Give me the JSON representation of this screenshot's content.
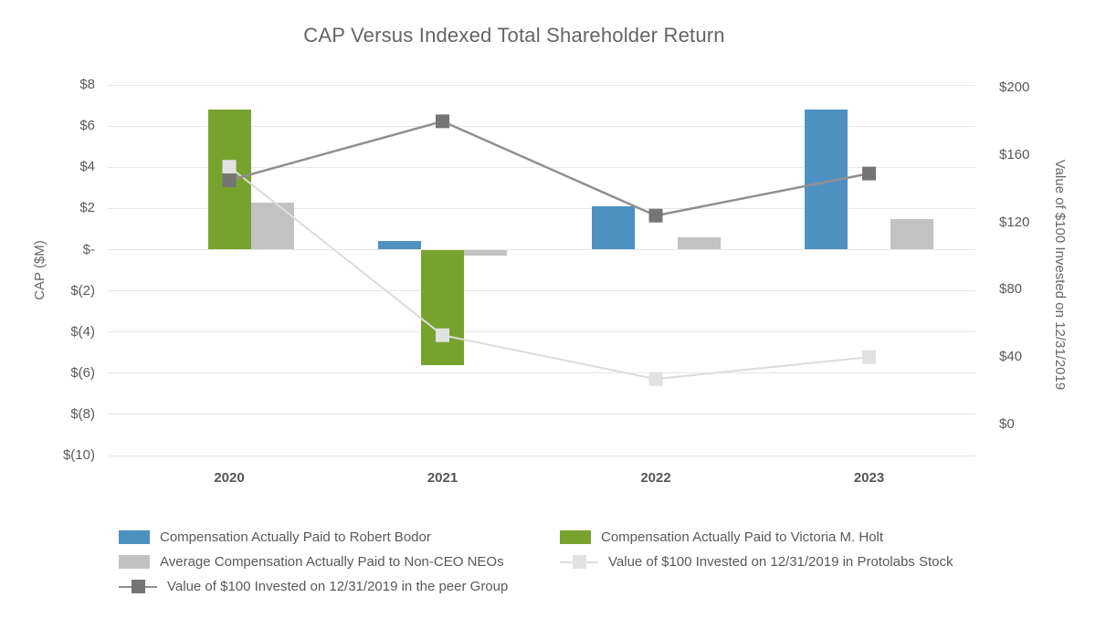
{
  "chart_data": {
    "type": "bar",
    "subtype": "grouped-bar-with-lines-dual-axis",
    "title": "CAP Versus Indexed Total Shareholder Return",
    "categories": [
      "2020",
      "2021",
      "2022",
      "2023"
    ],
    "left_axis": {
      "title": "CAP ($M)",
      "ticks": [
        8,
        6,
        4,
        2,
        0,
        -2,
        -4,
        -6,
        -8,
        -10
      ],
      "tick_labels": [
        "$8",
        "$6",
        "$4",
        "$2",
        "$-",
        "$(2)",
        "$(4)",
        "$(6)",
        "$(8)",
        "$(10)"
      ],
      "ylim": [
        -10,
        8
      ]
    },
    "right_axis": {
      "title": "Value of $100 Invested on 12/31/2019",
      "ticks": [
        200,
        160,
        120,
        80,
        40,
        0
      ],
      "tick_labels": [
        "$200",
        "$160",
        "$120",
        "$80",
        "$40",
        "$0"
      ],
      "ylim": [
        0,
        200
      ]
    },
    "grid": "horizontal-only",
    "series": [
      {
        "name": "Compensation Actually Paid to Robert Bodor",
        "type": "bar",
        "axis": "left",
        "slot": 0,
        "color": "#4d91c1",
        "values": [
          null,
          0.4,
          2.1,
          6.8
        ]
      },
      {
        "name": "Compensation Actually Paid to Victoria M. Holt",
        "type": "bar",
        "axis": "left",
        "slot": 1,
        "color": "#78a22e",
        "values": [
          6.8,
          -5.6,
          null,
          null
        ]
      },
      {
        "name": "Average Compensation Actually Paid to Non-CEO NEOs",
        "type": "bar",
        "axis": "left",
        "slot": 2,
        "color": "#c2c2c2",
        "values": [
          2.3,
          -0.3,
          0.6,
          1.5
        ]
      },
      {
        "name": "Value of $100 Invested on 12/31/2019 in Protolabs Stock",
        "type": "line",
        "axis": "right",
        "color": "#dcdcdc",
        "marker_color": "#e2e2e2",
        "marker": "square",
        "values": [
          153,
          53,
          27,
          40
        ]
      },
      {
        "name": "Value of $100 Invested on 12/31/2019 in the peer Group",
        "type": "line",
        "axis": "right",
        "color": "#8f8f8f",
        "marker_color": "#757575",
        "marker": "square",
        "values": [
          145,
          180,
          124,
          149
        ]
      }
    ],
    "legend": {
      "position": "bottom",
      "columns": [
        [
          {
            "swatch": "bar",
            "color": "#4d91c1",
            "label": "Compensation Actually Paid to Robert Bodor"
          },
          {
            "swatch": "bar",
            "color": "#c2c2c2",
            "label": "Average Compensation Actually Paid to Non-CEO NEOs"
          },
          {
            "swatch": "line",
            "line_color": "#8f8f8f",
            "marker_color": "#757575",
            "label": "Value of $100 Invested on 12/31/2019 in the peer Group"
          }
        ],
        [
          {
            "swatch": "bar",
            "color": "#78a22e",
            "label": "Compensation Actually Paid to Victoria M. Holt"
          },
          {
            "swatch": "line",
            "line_color": "#dcdcdc",
            "marker_color": "#e2e2e2",
            "label": "Value of $100 Invested on 12/31/2019 in Protolabs Stock"
          }
        ]
      ]
    }
  }
}
